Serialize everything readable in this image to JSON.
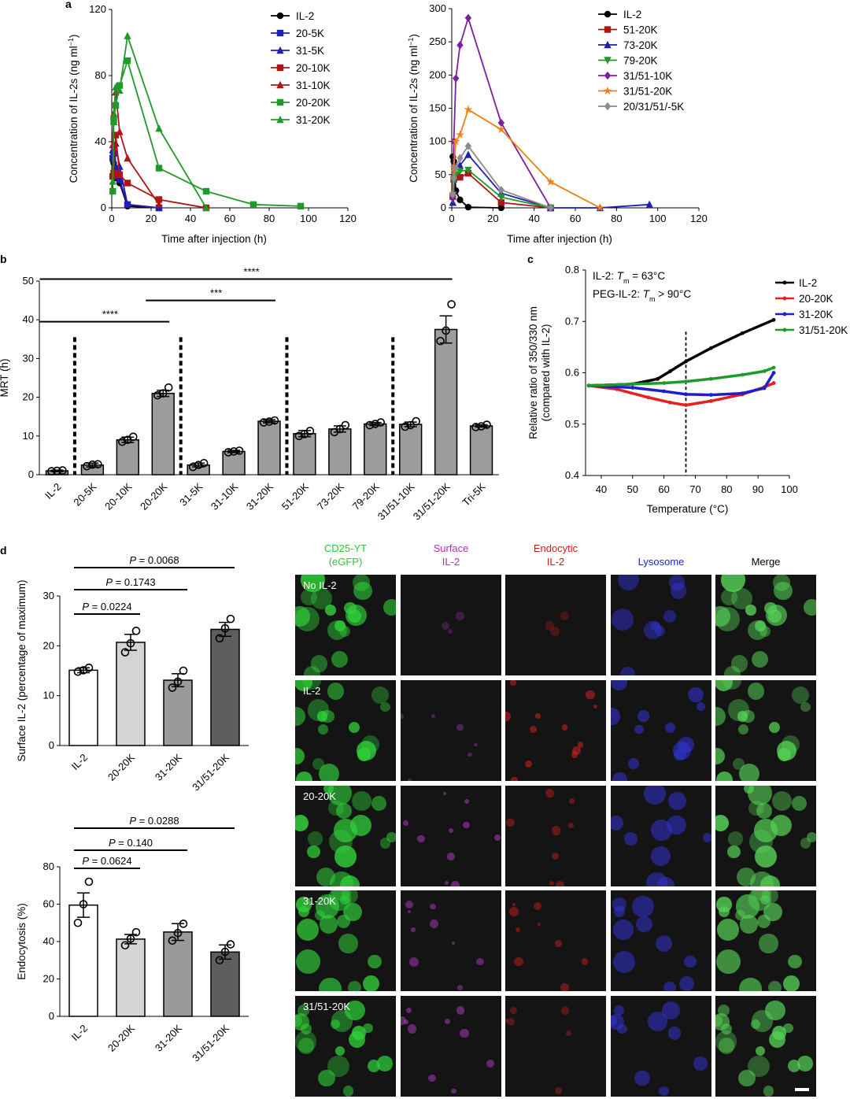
{
  "panel_labels": {
    "a": "a",
    "b": "b",
    "c": "c",
    "d": "d"
  },
  "chart_data": [
    {
      "id": "a-left",
      "type": "line",
      "xlabel": "Time after injection (h)",
      "ylabel_main": "Concentration of IL-2s (ng ml",
      "ylabel_sup": "−1",
      "ylabel_end": ")",
      "xlim": [
        0,
        120
      ],
      "ylim": [
        0,
        120
      ],
      "xticks": [
        0,
        20,
        40,
        60,
        80,
        100,
        120
      ],
      "yticks": [
        0,
        40,
        80,
        120
      ],
      "series": [
        {
          "name": "IL-2",
          "color": "#000000",
          "marker": "circle",
          "points": [
            [
              0.5,
              29
            ],
            [
              1,
              27
            ],
            [
              2,
              18
            ],
            [
              4,
              15
            ],
            [
              8,
              1
            ],
            [
              24,
              0
            ]
          ]
        },
        {
          "name": "20-5K",
          "color": "#1f1fb4",
          "marker": "square",
          "points": [
            [
              0.5,
              30
            ],
            [
              1,
              33
            ],
            [
              2,
              24
            ],
            [
              4,
              17
            ],
            [
              8,
              2
            ],
            [
              24,
              0
            ]
          ]
        },
        {
          "name": "31-5K",
          "color": "#1f1fb4",
          "marker": "triangle",
          "points": [
            [
              0.5,
              35
            ],
            [
              1,
              33
            ],
            [
              2,
              39
            ],
            [
              4,
              25
            ],
            [
              8,
              2
            ],
            [
              24,
              0
            ]
          ]
        },
        {
          "name": "20-10K",
          "color": "#b01515",
          "marker": "square",
          "points": [
            [
              0.5,
              19
            ],
            [
              1,
              21
            ],
            [
              2,
              44
            ],
            [
              4,
              20
            ],
            [
              8,
              15
            ],
            [
              24,
              5
            ],
            [
              48,
              0
            ]
          ]
        },
        {
          "name": "31-10K",
          "color": "#b01515",
          "marker": "triangle",
          "points": [
            [
              0.5,
              38
            ],
            [
              1,
              57
            ],
            [
              2,
              70
            ],
            [
              4,
              46
            ],
            [
              8,
              30
            ],
            [
              24,
              2
            ]
          ]
        },
        {
          "name": "20-20K",
          "color": "#1f9a2a",
          "marker": "square",
          "points": [
            [
              0.5,
              10
            ],
            [
              1,
              52
            ],
            [
              2,
              62
            ],
            [
              4,
              74
            ],
            [
              8,
              89
            ],
            [
              24,
              24
            ],
            [
              48,
              10
            ],
            [
              72,
              2
            ],
            [
              96,
              1
            ]
          ]
        },
        {
          "name": "31-20K",
          "color": "#1f9a2a",
          "marker": "triangle",
          "points": [
            [
              0.5,
              16
            ],
            [
              1,
              56
            ],
            [
              2,
              73
            ],
            [
              4,
              71
            ],
            [
              8,
              104
            ],
            [
              24,
              48
            ],
            [
              48,
              0
            ]
          ]
        }
      ]
    },
    {
      "id": "a-right",
      "type": "line",
      "xlabel": "Time after injection (h)",
      "ylabel_main": "Concentration of IL-2s (ng ml",
      "ylabel_sup": "−1",
      "ylabel_end": ")",
      "xlim": [
        0,
        120
      ],
      "ylim": [
        0,
        300
      ],
      "xticks": [
        0,
        20,
        40,
        60,
        80,
        100,
        120
      ],
      "yticks": [
        0,
        50,
        100,
        150,
        200,
        250,
        300
      ],
      "series": [
        {
          "name": "IL-2",
          "color": "#000000",
          "marker": "circle",
          "points": [
            [
              0.5,
              77
            ],
            [
              1,
              70
            ],
            [
              2,
              26
            ],
            [
              4,
              12
            ],
            [
              8,
              1
            ],
            [
              24,
              0
            ]
          ]
        },
        {
          "name": "51-20K",
          "color": "#b01515",
          "marker": "square",
          "points": [
            [
              0.5,
              17
            ],
            [
              1,
              43
            ],
            [
              2,
              48
            ],
            [
              4,
              46
            ],
            [
              8,
              52
            ],
            [
              24,
              8
            ],
            [
              48,
              0
            ]
          ]
        },
        {
          "name": "73-20K",
          "color": "#1f1fb4",
          "marker": "triangle",
          "points": [
            [
              0.5,
              8
            ],
            [
              1,
              25
            ],
            [
              2,
              62
            ],
            [
              4,
              64
            ],
            [
              8,
              80
            ],
            [
              24,
              22
            ],
            [
              48,
              0
            ],
            [
              72,
              0
            ],
            [
              96,
              5
            ]
          ]
        },
        {
          "name": "79-20K",
          "color": "#1f9a2a",
          "marker": "triangle_down",
          "points": [
            [
              0.5,
              13
            ],
            [
              1,
              40
            ],
            [
              2,
              50
            ],
            [
              4,
              55
            ],
            [
              8,
              57
            ],
            [
              24,
              16
            ],
            [
              48,
              0
            ]
          ]
        },
        {
          "name": "31/51-10K",
          "color": "#7d1fa0",
          "marker": "diamond",
          "points": [
            [
              0.5,
              15
            ],
            [
              1,
              100
            ],
            [
              2,
              195
            ],
            [
              4,
              245
            ],
            [
              8,
              286
            ],
            [
              24,
              128
            ],
            [
              48,
              0
            ]
          ]
        },
        {
          "name": "31/51-20K",
          "color": "#f07f15",
          "marker": "star",
          "points": [
            [
              0.5,
              22
            ],
            [
              1,
              60
            ],
            [
              2,
              100
            ],
            [
              4,
              110
            ],
            [
              8,
              148
            ],
            [
              24,
              118
            ],
            [
              48,
              39
            ],
            [
              72,
              0
            ]
          ]
        },
        {
          "name": "20/31/51/-5K",
          "color": "#8c8c8c",
          "marker": "diamond",
          "points": [
            [
              0.5,
              20
            ],
            [
              1,
              45
            ],
            [
              2,
              60
            ],
            [
              4,
              75
            ],
            [
              8,
              93
            ],
            [
              24,
              27
            ],
            [
              48,
              0
            ]
          ]
        }
      ]
    },
    {
      "id": "b",
      "type": "bar",
      "ylabel": "MRT (h)",
      "ylim": [
        0,
        50
      ],
      "yticks": [
        0,
        10,
        20,
        30,
        40,
        50
      ],
      "categories": [
        "IL-2",
        "20-5K",
        "20-10K",
        "20-20K",
        "31-5K",
        "31-10K",
        "31-20K",
        "51-20K",
        "73-20K",
        "79-20K",
        "31/51-10K",
        "31/51-20K",
        "Tri-5K"
      ],
      "values": [
        1.0,
        2.5,
        9.0,
        21.0,
        2.5,
        6.0,
        13.8,
        10.6,
        11.8,
        13.1,
        13.0,
        37.5,
        12.6
      ],
      "errors": [
        0.2,
        0.5,
        0.7,
        0.8,
        0.5,
        0.3,
        0.4,
        0.8,
        0.8,
        0.4,
        0.6,
        3.5,
        0.3
      ],
      "points": [
        [
          0.9,
          1.0,
          1.1
        ],
        [
          2.2,
          2.6,
          2.7
        ],
        [
          8.5,
          9.0,
          9.8
        ],
        [
          20.5,
          21.0,
          22.5
        ],
        [
          2.0,
          2.5,
          3.0
        ],
        [
          5.8,
          6.0,
          6.2
        ],
        [
          13.5,
          13.7,
          14.0
        ],
        [
          10.0,
          10.5,
          11.3
        ],
        [
          11.0,
          11.8,
          12.8
        ],
        [
          12.8,
          13.1,
          13.5
        ],
        [
          12.4,
          12.8,
          13.8
        ],
        [
          34.5,
          37.2,
          44.0
        ],
        [
          12.3,
          12.5,
          12.9
        ]
      ],
      "separators_after_index": [
        0,
        3,
        6,
        9
      ],
      "significance": [
        {
          "from": 0,
          "to": 3,
          "label": "****"
        },
        {
          "from": 3,
          "to": 6,
          "label": "***"
        },
        {
          "from": 0,
          "to": 11,
          "label": "****"
        }
      ]
    },
    {
      "id": "c",
      "type": "line",
      "xlabel": "Temperature (°C)",
      "ylabel_line1": "Relative ratio of 350/330 nm",
      "ylabel_line2": "(compared with IL-2)",
      "xlim": [
        35,
        100
      ],
      "ylim": [
        0.4,
        0.8
      ],
      "xticks": [
        40,
        50,
        60,
        70,
        80,
        90,
        100
      ],
      "yticks": [
        0.4,
        0.5,
        0.6,
        0.7,
        0.8
      ],
      "vline_x": 67,
      "annotation_lines": [
        {
          "prefix": "IL-2: ",
          "T": "T",
          "m": "m",
          "suffix": " = 63°C"
        },
        {
          "prefix": "PEG-IL-2: ",
          "T": "T",
          "m": "m",
          "suffix": " > 90°C"
        }
      ],
      "series": [
        {
          "name": "IL-2",
          "color": "#000000",
          "points": [
            [
              36,
              0.575
            ],
            [
              50,
              0.578
            ],
            [
              58,
              0.588
            ],
            [
              62,
              0.603
            ],
            [
              67,
              0.622
            ],
            [
              75,
              0.648
            ],
            [
              85,
              0.677
            ],
            [
              95,
              0.703
            ]
          ]
        },
        {
          "name": "20-20K",
          "color": "#e52020",
          "points": [
            [
              36,
              0.575
            ],
            [
              45,
              0.568
            ],
            [
              55,
              0.552
            ],
            [
              62,
              0.542
            ],
            [
              67,
              0.537
            ],
            [
              75,
              0.545
            ],
            [
              85,
              0.558
            ],
            [
              92,
              0.572
            ],
            [
              95,
              0.58
            ]
          ]
        },
        {
          "name": "31-20K",
          "color": "#1f1fc8",
          "points": [
            [
              36,
              0.575
            ],
            [
              50,
              0.571
            ],
            [
              60,
              0.564
            ],
            [
              67,
              0.558
            ],
            [
              75,
              0.557
            ],
            [
              85,
              0.56
            ],
            [
              92,
              0.57
            ],
            [
              95,
              0.6
            ]
          ]
        },
        {
          "name": "31/51-20K",
          "color": "#1f9a2a",
          "points": [
            [
              36,
              0.575
            ],
            [
              50,
              0.578
            ],
            [
              60,
              0.58
            ],
            [
              67,
              0.583
            ],
            [
              75,
              0.588
            ],
            [
              85,
              0.596
            ],
            [
              92,
              0.603
            ],
            [
              95,
              0.61
            ]
          ]
        }
      ]
    },
    {
      "id": "d-top",
      "type": "bar",
      "ylabel": "Surface IL-2 (percentage of maximum)",
      "ylim": [
        0,
        30
      ],
      "yticks": [
        0,
        10,
        20,
        30
      ],
      "categories": [
        "IL-2",
        "20-20K",
        "31-20K",
        "31/51-20K"
      ],
      "values": [
        15.1,
        20.7,
        13.1,
        23.3
      ],
      "errors": [
        0.5,
        1.6,
        1.3,
        1.4
      ],
      "points": [
        [
          14.8,
          15.1,
          15.6
        ],
        [
          18.7,
          20.5,
          23.0
        ],
        [
          11.6,
          12.8,
          15.0
        ],
        [
          21.5,
          23.5,
          25.4
        ]
      ],
      "colors": [
        "#ffffff",
        "#d4d4d4",
        "#9a9a9a",
        "#5e5e5e"
      ],
      "significance": [
        {
          "from": 0,
          "to": 1,
          "label_p": "P",
          "label_rest": " = 0.0224"
        },
        {
          "from": 0,
          "to": 2,
          "label_p": "P",
          "label_rest": " = 0.1743"
        },
        {
          "from": 0,
          "to": 3,
          "label_p": "P",
          "label_rest": " = 0.0068"
        }
      ]
    },
    {
      "id": "d-bottom",
      "type": "bar",
      "ylabel": "Endocytosis (%)",
      "ylim": [
        0,
        80
      ],
      "yticks": [
        0,
        20,
        40,
        60,
        80
      ],
      "categories": [
        "IL-2",
        "20-20K",
        "31-20K",
        "31/51-20K"
      ],
      "values": [
        59.5,
        41.3,
        45.1,
        34.4
      ],
      "errors": [
        6.5,
        2.5,
        4.5,
        3.8
      ],
      "points": [
        [
          50.0,
          60.0,
          72.0
        ],
        [
          38.0,
          41.5,
          45.0
        ],
        [
          40.5,
          44.5,
          49.5
        ],
        [
          30.0,
          34.5,
          38.5
        ]
      ],
      "colors": [
        "#ffffff",
        "#d4d4d4",
        "#9a9a9a",
        "#5e5e5e"
      ],
      "significance": [
        {
          "from": 0,
          "to": 1,
          "label_p": "P",
          "label_rest": " = 0.0624"
        },
        {
          "from": 0,
          "to": 2,
          "label_p": "P",
          "label_rest": " = 0.140"
        },
        {
          "from": 0,
          "to": 3,
          "label_p": "P",
          "label_rest": " = 0.0288"
        }
      ]
    }
  ],
  "microscopy": {
    "columns": [
      {
        "line1": "CD25-YT",
        "line2": "(eGFP)",
        "color": "#33c43c"
      },
      {
        "line1": "Surface",
        "line2": "IL-2",
        "color": "#b030b8"
      },
      {
        "line1": "Endocytic",
        "line2": "IL-2",
        "color": "#c81e1e"
      },
      {
        "line1": "Lysosome",
        "line2": "",
        "color": "#2222cc"
      },
      {
        "line1": "Merge",
        "line2": "",
        "color": "#000000"
      }
    ],
    "rows": [
      "No IL-2",
      "IL-2",
      "20-20K",
      "31-20K",
      "31/51-20K"
    ],
    "channel_colors": [
      "#31d13a",
      "#b43cc8",
      "#d42020",
      "#3434d8",
      "#55d055"
    ]
  }
}
